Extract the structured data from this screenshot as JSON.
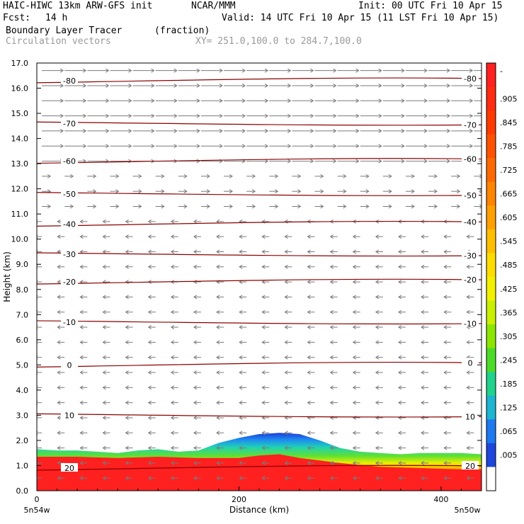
{
  "header": {
    "model": "HAIC-HIWC 13km ARW-GFS init",
    "org": "NCAR/MMM",
    "init": "Init: 00 UTC Fri 10 Apr 15",
    "fcst_label": "Fcst:",
    "fcst_value": "14 h",
    "valid": "Valid: 14 UTC Fri 10 Apr 15 (11 LST Fri 10 Apr 15)",
    "field": "Boundary Layer Tracer",
    "units": "(fraction)",
    "vectors": "Circulation vectors",
    "xy": "XY= 251.0,100.0 to 284.7,100.0"
  },
  "chart_data": {
    "type": "heatmap",
    "xlabel": "Distance (km)",
    "ylabel": "Height (km)",
    "xlim": [
      0,
      440
    ],
    "ylim": [
      0,
      17
    ],
    "x_ticks": [
      "0",
      "200",
      "400"
    ],
    "x_tick_values": [
      0,
      200,
      400
    ],
    "y_ticks": [
      "0.0",
      "1.0",
      "2.0",
      "3.0",
      "4.0",
      "5.0",
      "6.0",
      "7.0",
      "8.0",
      "9.0",
      "10.0",
      "11.0",
      "12.0",
      "13.0",
      "14.0",
      "15.0",
      "16.0",
      "17.0"
    ],
    "y_tick_values": [
      0,
      1,
      2,
      3,
      4,
      5,
      6,
      7,
      8,
      9,
      10,
      11,
      12,
      13,
      14,
      15,
      16,
      17
    ],
    "left_endpoint": "5n54w",
    "right_endpoint": "5n50w",
    "colorbar": {
      "labels": [
        "-",
        ".905",
        ".845",
        ".785",
        ".725",
        ".665",
        ".605",
        ".545",
        ".485",
        ".425",
        ".365",
        ".305",
        ".245",
        ".185",
        ".125",
        ".065",
        ".005"
      ],
      "colors": [
        "#ff2020",
        "#ff2a10",
        "#ff3a00",
        "#ff5200",
        "#ff6a00",
        "#ff8400",
        "#ffa000",
        "#ffbf00",
        "#ffdc00",
        "#f2f000",
        "#c8f000",
        "#8ce600",
        "#4cdc28",
        "#20d28c",
        "#1eb4d2",
        "#1e78f0",
        "#1e46dc",
        "#ffffff"
      ]
    },
    "temperature_contours": [
      {
        "label": "-80",
        "height": 16.3
      },
      {
        "label": "-70",
        "height": 14.6
      },
      {
        "label": "-60",
        "height": 13.1
      },
      {
        "label": "-50",
        "height": 11.8
      },
      {
        "label": "-40",
        "height": 10.6
      },
      {
        "label": "-30",
        "height": 9.4
      },
      {
        "label": "-20",
        "height": 8.3
      },
      {
        "label": "-10",
        "height": 6.7
      },
      {
        "label": "0",
        "height": 5.0
      },
      {
        "label": "10",
        "height": 3.0
      },
      {
        "label": "20",
        "height": 0.9
      }
    ],
    "tracer_top_km": [
      [
        0,
        1.65
      ],
      [
        20,
        1.6
      ],
      [
        40,
        1.6
      ],
      [
        60,
        1.55
      ],
      [
        80,
        1.5
      ],
      [
        100,
        1.6
      ],
      [
        120,
        1.65
      ],
      [
        140,
        1.55
      ],
      [
        160,
        1.6
      ],
      [
        180,
        1.9
      ],
      [
        200,
        2.1
      ],
      [
        220,
        2.25
      ],
      [
        240,
        2.3
      ],
      [
        260,
        2.25
      ],
      [
        280,
        2.0
      ],
      [
        300,
        1.7
      ],
      [
        320,
        1.55
      ],
      [
        340,
        1.5
      ],
      [
        360,
        1.45
      ],
      [
        380,
        1.5
      ],
      [
        400,
        1.5
      ],
      [
        420,
        1.5
      ],
      [
        440,
        1.45
      ]
    ],
    "tracer_red_top_km": [
      [
        0,
        1.35
      ],
      [
        40,
        1.35
      ],
      [
        80,
        1.3
      ],
      [
        120,
        1.35
      ],
      [
        160,
        1.3
      ],
      [
        200,
        1.3
      ],
      [
        220,
        1.4
      ],
      [
        240,
        1.45
      ],
      [
        260,
        1.3
      ],
      [
        300,
        1.1
      ],
      [
        340,
        0.95
      ],
      [
        380,
        0.9
      ],
      [
        420,
        0.85
      ],
      [
        440,
        0.85
      ]
    ]
  }
}
